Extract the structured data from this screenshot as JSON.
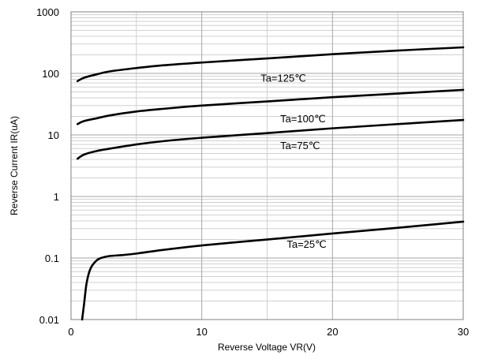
{
  "chart_data": {
    "type": "line",
    "title": "",
    "xlabel": "Reverse Voltage  VR(V)",
    "ylabel": "Reverse Current  IR(uA)",
    "x_scale": "linear",
    "y_scale": "log",
    "xlim": [
      0,
      30
    ],
    "ylim": [
      0.01,
      1000
    ],
    "x_ticks": [
      0,
      10,
      20,
      30
    ],
    "x_tick_labels": [
      "0",
      "10",
      "20",
      "30"
    ],
    "y_ticks": [
      0.01,
      0.1,
      1,
      10,
      100,
      1000
    ],
    "y_tick_labels": [
      "0.01",
      "0.1",
      "1",
      "10",
      "100",
      "1000"
    ],
    "grid": true,
    "legend": "none",
    "line_color": "#000000",
    "grid_color_major": "#a6a6a6",
    "grid_color_minor": "#d0d0d0",
    "series": [
      {
        "name": "Ta=125℃",
        "label_at": [
          14.5,
          85
        ],
        "x": [
          0.5,
          1,
          2,
          3,
          5,
          7,
          10,
          15,
          20,
          25,
          30
        ],
        "y": [
          75,
          85,
          97,
          108,
          122,
          135,
          150,
          175,
          205,
          235,
          265
        ]
      },
      {
        "name": "Ta=100℃",
        "label_at": [
          16,
          18.5
        ],
        "x": [
          0.5,
          1,
          2,
          3,
          5,
          7,
          10,
          15,
          20,
          25,
          30
        ],
        "y": [
          15,
          16.8,
          18.7,
          20.8,
          24,
          26.5,
          30,
          35,
          41,
          47,
          54
        ]
      },
      {
        "name": "Ta=75℃",
        "label_at": [
          16,
          6.8
        ],
        "x": [
          0.5,
          1,
          2,
          3,
          5,
          7,
          10,
          15,
          20,
          25,
          30
        ],
        "y": [
          4.1,
          4.8,
          5.5,
          6.0,
          7.0,
          7.9,
          9.0,
          10.7,
          12.8,
          15,
          17.5
        ]
      },
      {
        "name": "Ta=25℃",
        "label_at": [
          16.5,
          0.17
        ],
        "x": [
          0.85,
          1.0,
          1.2,
          1.5,
          2,
          2.5,
          3,
          4,
          5,
          7,
          10,
          15,
          20,
          25,
          30
        ],
        "y": [
          0.01,
          0.018,
          0.04,
          0.068,
          0.093,
          0.103,
          0.108,
          0.112,
          0.118,
          0.135,
          0.16,
          0.2,
          0.25,
          0.31,
          0.39
        ]
      }
    ]
  }
}
